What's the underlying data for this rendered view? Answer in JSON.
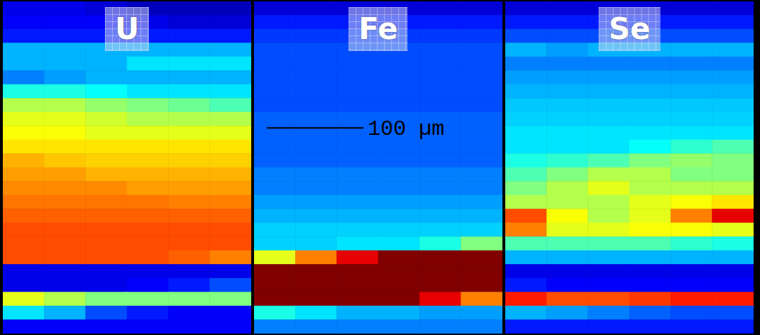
{
  "chart_data": [
    {
      "type": "heatmap",
      "title": "U",
      "color": "jet",
      "clim": [
        0,
        1
      ],
      "xlim": [
        0,
        257
      ],
      "ylim": [
        0,
        344
      ],
      "tick_labels": false,
      "cells": [
        [
          0.1,
          0.1,
          0.08,
          0.05,
          0.05,
          0.05
        ],
        [
          0.12,
          0.12,
          0.12,
          0.1,
          0.08,
          0.08
        ],
        [
          0.15,
          0.15,
          0.15,
          0.15,
          0.15,
          0.15
        ],
        [
          0.3,
          0.3,
          0.3,
          0.3,
          0.3,
          0.3
        ],
        [
          0.3,
          0.3,
          0.3,
          0.35,
          0.35,
          0.35
        ],
        [
          0.25,
          0.28,
          0.3,
          0.3,
          0.3,
          0.3
        ],
        [
          0.4,
          0.4,
          0.38,
          0.35,
          0.35,
          0.35
        ],
        [
          0.55,
          0.55,
          0.52,
          0.5,
          0.48,
          0.45
        ],
        [
          0.6,
          0.6,
          0.58,
          0.55,
          0.55,
          0.55
        ],
        [
          0.62,
          0.62,
          0.6,
          0.6,
          0.6,
          0.6
        ],
        [
          0.65,
          0.65,
          0.65,
          0.65,
          0.65,
          0.65
        ],
        [
          0.7,
          0.68,
          0.67,
          0.67,
          0.67,
          0.67
        ],
        [
          0.72,
          0.72,
          0.7,
          0.7,
          0.7,
          0.7
        ],
        [
          0.74,
          0.74,
          0.74,
          0.72,
          0.72,
          0.72
        ],
        [
          0.76,
          0.76,
          0.76,
          0.76,
          0.75,
          0.75
        ],
        [
          0.78,
          0.78,
          0.78,
          0.78,
          0.78,
          0.78
        ],
        [
          0.8,
          0.8,
          0.8,
          0.8,
          0.8,
          0.8
        ],
        [
          0.8,
          0.8,
          0.8,
          0.8,
          0.8,
          0.8
        ],
        [
          0.8,
          0.8,
          0.8,
          0.8,
          0.78,
          0.75
        ],
        [
          0.1,
          0.1,
          0.1,
          0.1,
          0.1,
          0.1
        ],
        [
          0.1,
          0.1,
          0.1,
          0.12,
          0.15,
          0.2
        ],
        [
          0.6,
          0.55,
          0.5,
          0.5,
          0.5,
          0.5
        ],
        [
          0.35,
          0.3,
          0.2,
          0.15,
          0.12,
          0.12
        ],
        [
          0.12,
          0.12,
          0.12,
          0.12,
          0.12,
          0.12
        ]
      ]
    },
    {
      "type": "heatmap",
      "title": "Fe",
      "color": "jet",
      "clim": [
        0,
        1
      ],
      "xlim": [
        0,
        257
      ],
      "ylim": [
        0,
        344
      ],
      "tick_labels": false,
      "scale_bar": {
        "text": "100 µm",
        "length": 100
      },
      "cells": [
        [
          0.08,
          0.08,
          0.08,
          0.08,
          0.08,
          0.08
        ],
        [
          0.15,
          0.15,
          0.15,
          0.15,
          0.15,
          0.15
        ],
        [
          0.18,
          0.18,
          0.18,
          0.18,
          0.18,
          0.18
        ],
        [
          0.2,
          0.2,
          0.2,
          0.2,
          0.2,
          0.2
        ],
        [
          0.2,
          0.2,
          0.2,
          0.2,
          0.2,
          0.2
        ],
        [
          0.2,
          0.2,
          0.2,
          0.2,
          0.2,
          0.2
        ],
        [
          0.2,
          0.2,
          0.2,
          0.2,
          0.2,
          0.2
        ],
        [
          0.2,
          0.2,
          0.2,
          0.2,
          0.2,
          0.2
        ],
        [
          0.22,
          0.22,
          0.22,
          0.22,
          0.22,
          0.22
        ],
        [
          0.22,
          0.22,
          0.22,
          0.22,
          0.22,
          0.22
        ],
        [
          0.22,
          0.22,
          0.22,
          0.22,
          0.22,
          0.22
        ],
        [
          0.22,
          0.22,
          0.22,
          0.22,
          0.22,
          0.22
        ],
        [
          0.25,
          0.25,
          0.25,
          0.25,
          0.25,
          0.25
        ],
        [
          0.25,
          0.25,
          0.25,
          0.25,
          0.25,
          0.25
        ],
        [
          0.28,
          0.28,
          0.28,
          0.28,
          0.28,
          0.28
        ],
        [
          0.3,
          0.3,
          0.3,
          0.3,
          0.3,
          0.3
        ],
        [
          0.33,
          0.33,
          0.33,
          0.33,
          0.33,
          0.33
        ],
        [
          0.33,
          0.33,
          0.35,
          0.35,
          0.4,
          0.5
        ],
        [
          0.6,
          0.75,
          0.9,
          1,
          1,
          1
        ],
        [
          1,
          1,
          1,
          1,
          1,
          1
        ],
        [
          1,
          1,
          1,
          1,
          1,
          1
        ],
        [
          1,
          1,
          1,
          1,
          0.9,
          0.75
        ],
        [
          0.4,
          0.35,
          0.3,
          0.3,
          0.28,
          0.28
        ],
        [
          0.25,
          0.25,
          0.25,
          0.25,
          0.25,
          0.25
        ]
      ]
    },
    {
      "type": "heatmap",
      "title": "Se",
      "color": "jet",
      "clim": [
        0,
        1
      ],
      "xlim": [
        0,
        257
      ],
      "ylim": [
        0,
        344
      ],
      "tick_labels": false,
      "cells": [
        [
          0.08,
          0.08,
          0.08,
          0.08,
          0.08,
          0.08
        ],
        [
          0.15,
          0.15,
          0.15,
          0.15,
          0.15,
          0.15
        ],
        [
          0.2,
          0.2,
          0.2,
          0.2,
          0.2,
          0.2
        ],
        [
          0.3,
          0.28,
          0.3,
          0.3,
          0.3,
          0.3
        ],
        [
          0.25,
          0.25,
          0.25,
          0.25,
          0.25,
          0.25
        ],
        [
          0.28,
          0.28,
          0.28,
          0.28,
          0.28,
          0.28
        ],
        [
          0.3,
          0.3,
          0.3,
          0.3,
          0.3,
          0.3
        ],
        [
          0.32,
          0.32,
          0.32,
          0.32,
          0.32,
          0.32
        ],
        [
          0.33,
          0.33,
          0.33,
          0.33,
          0.33,
          0.33
        ],
        [
          0.35,
          0.35,
          0.35,
          0.35,
          0.35,
          0.35
        ],
        [
          0.35,
          0.35,
          0.35,
          0.38,
          0.42,
          0.45
        ],
        [
          0.4,
          0.42,
          0.45,
          0.5,
          0.52,
          0.5
        ],
        [
          0.45,
          0.5,
          0.55,
          0.55,
          0.5,
          0.5
        ],
        [
          0.5,
          0.55,
          0.6,
          0.55,
          0.55,
          0.55
        ],
        [
          0.55,
          0.55,
          0.55,
          0.6,
          0.62,
          0.65
        ],
        [
          0.8,
          0.62,
          0.55,
          0.6,
          0.75,
          0.9
        ],
        [
          0.75,
          0.6,
          0.6,
          0.62,
          0.62,
          0.6
        ],
        [
          0.45,
          0.45,
          0.45,
          0.45,
          0.42,
          0.4
        ],
        [
          0.3,
          0.3,
          0.3,
          0.3,
          0.3,
          0.3
        ],
        [
          0.1,
          0.1,
          0.1,
          0.1,
          0.1,
          0.1
        ],
        [
          0.15,
          0.12,
          0.12,
          0.12,
          0.12,
          0.12
        ],
        [
          0.85,
          0.8,
          0.8,
          0.82,
          0.85,
          0.85
        ],
        [
          0.3,
          0.28,
          0.25,
          0.22,
          0.2,
          0.2
        ],
        [
          0.15,
          0.15,
          0.15,
          0.15,
          0.15,
          0.15
        ]
      ]
    }
  ]
}
